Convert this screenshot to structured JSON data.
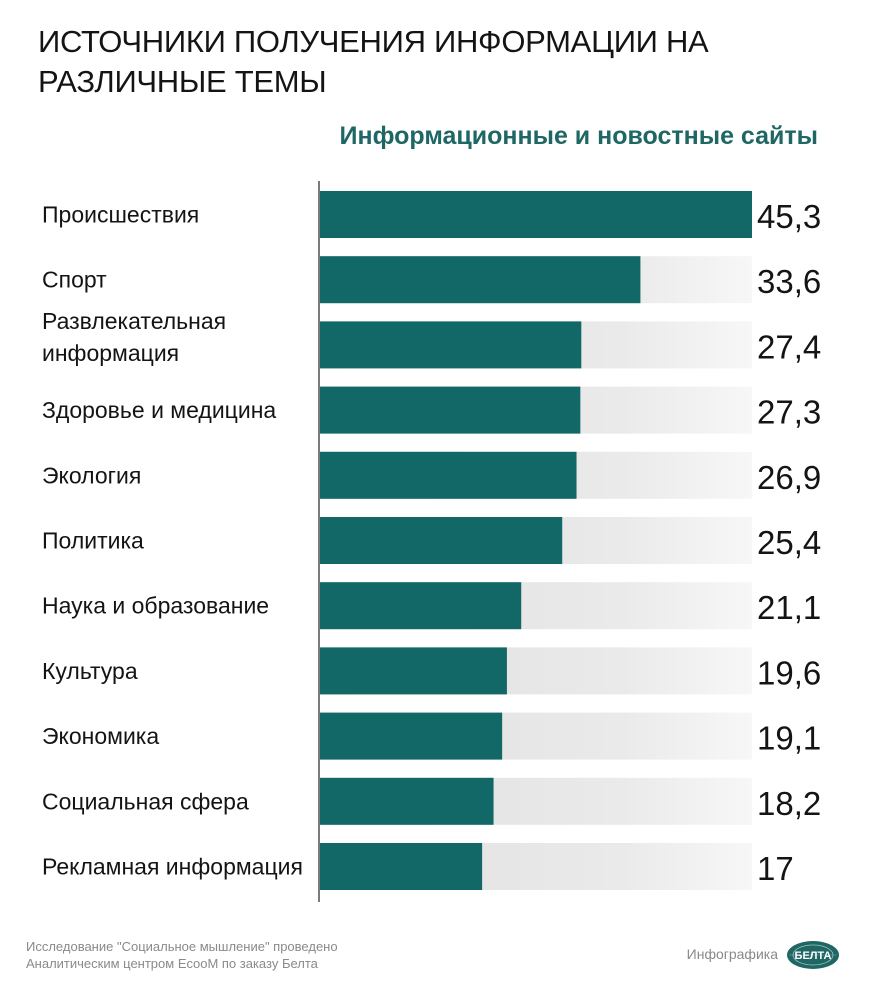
{
  "title": "ИСТОЧНИКИ ПОЛУЧЕНИЯ ИНФОРМАЦИИ НА РАЗЛИЧНЫЕ ТЕМЫ",
  "chart_data": {
    "type": "bar",
    "orientation": "horizontal",
    "title": "Информационные и новостные сайты",
    "categories": [
      [
        "Происшествия"
      ],
      [
        "Спорт"
      ],
      [
        "Развлекательная",
        "информация"
      ],
      [
        "Здоровье и медицина"
      ],
      [
        "Экология"
      ],
      [
        "Политика"
      ],
      [
        "Наука и образование"
      ],
      [
        "Культура"
      ],
      [
        "Экономика"
      ],
      [
        "Социальная сфера"
      ],
      [
        "Рекламная информация"
      ]
    ],
    "values": [
      45.3,
      33.6,
      27.4,
      27.3,
      26.9,
      25.4,
      21.1,
      19.6,
      19.1,
      18.2,
      17
    ],
    "value_labels": [
      "45,3",
      "33,6",
      "27,4",
      "27,3",
      "26,9",
      "25,4",
      "21,1",
      "19,6",
      "19,1",
      "18,2",
      "17"
    ],
    "xlim": [
      0,
      45.3
    ],
    "grid": false,
    "legend": "none",
    "colors": {
      "bar": "#126866",
      "track": "#e6e6e6",
      "subtitle": "#1e6764"
    }
  },
  "footer": {
    "note_line1": "Исследование \"Социальное мышление\" проведено",
    "note_line2": "Аналитическим центром EcooM по заказу Белта",
    "infographic_label": "Инфографика",
    "logo_text": "БЕЛТА",
    "logo_color": "#1e6764"
  }
}
